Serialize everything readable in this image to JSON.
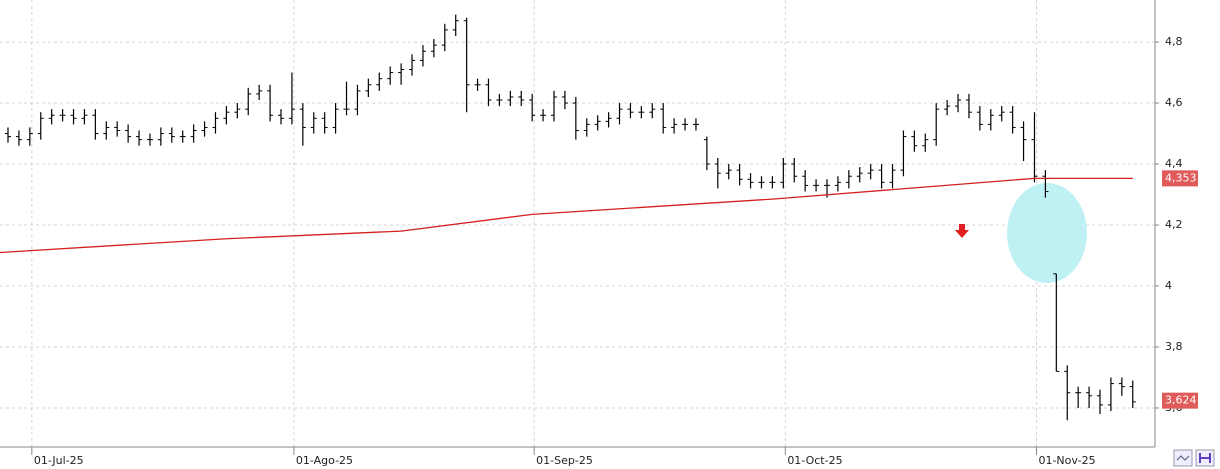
{
  "chart_data": {
    "type": "ohlc",
    "categories": [
      null,
      null,
      "01-Jul-25",
      null,
      null,
      null,
      null,
      null,
      null,
      null,
      null,
      null,
      null,
      null,
      null,
      null,
      null,
      null,
      null,
      null,
      null,
      null,
      null,
      null,
      null,
      null,
      "01-Ago-25",
      null,
      null,
      null,
      null,
      null,
      null,
      null,
      null,
      null,
      null,
      null,
      null,
      null,
      null,
      null,
      null,
      null,
      null,
      null,
      null,
      null,
      "01-Sep-25",
      null,
      null,
      null,
      null,
      null,
      null,
      null,
      null,
      null,
      null,
      null,
      null,
      null,
      null,
      null,
      null,
      null,
      null,
      null,
      null,
      null,
      null,
      "01-Oct-25",
      null,
      null,
      null,
      null,
      null,
      null,
      null,
      null,
      null,
      null,
      null,
      null,
      null,
      null,
      null,
      null,
      null,
      null,
      null,
      null,
      null,
      null,
      "01-Nov-25",
      null,
      null,
      null,
      null,
      null,
      null,
      null,
      null,
      null
    ],
    "open": [
      4.5,
      4.49,
      4.48,
      4.5,
      4.55,
      4.56,
      4.56,
      4.55,
      4.56,
      4.5,
      4.52,
      4.51,
      4.49,
      4.48,
      4.48,
      4.5,
      4.49,
      4.49,
      4.51,
      4.52,
      4.55,
      4.57,
      4.58,
      4.63,
      4.64,
      4.56,
      4.55,
      4.58,
      4.52,
      4.55,
      4.52,
      4.58,
      4.58,
      4.64,
      4.66,
      4.68,
      4.7,
      4.71,
      4.74,
      4.77,
      4.79,
      4.84,
      4.87,
      4.66,
      4.66,
      4.61,
      4.61,
      4.62,
      4.61,
      4.56,
      4.56,
      4.62,
      4.6,
      4.51,
      4.53,
      4.54,
      4.55,
      4.58,
      4.57,
      4.57,
      4.58,
      4.52,
      4.53,
      4.53,
      4.48,
      4.4,
      4.37,
      4.38,
      4.35,
      4.34,
      4.34,
      4.34,
      4.4,
      4.36,
      4.33,
      4.33,
      4.33,
      4.34,
      4.36,
      4.37,
      4.38,
      4.34,
      4.38,
      4.49,
      4.46,
      4.48,
      4.58,
      4.59,
      4.61,
      4.57,
      4.53,
      4.56,
      4.57,
      4.52,
      4.48,
      4.36,
      4.04,
      3.72,
      3.65,
      3.65,
      3.64,
      3.61,
      3.68,
      3.67
    ],
    "high": [
      4.52,
      4.51,
      4.52,
      4.57,
      4.58,
      4.58,
      4.58,
      4.58,
      4.58,
      4.54,
      4.54,
      4.53,
      4.51,
      4.5,
      4.52,
      4.52,
      4.51,
      4.53,
      4.54,
      4.57,
      4.59,
      4.6,
      4.65,
      4.66,
      4.66,
      4.58,
      4.7,
      4.6,
      4.57,
      4.57,
      4.6,
      4.67,
      4.66,
      4.68,
      4.7,
      4.72,
      4.73,
      4.76,
      4.79,
      4.81,
      4.86,
      4.89,
      4.88,
      4.68,
      4.68,
      4.63,
      4.64,
      4.64,
      4.63,
      4.58,
      4.64,
      4.64,
      4.62,
      4.55,
      4.56,
      4.57,
      4.6,
      4.6,
      4.59,
      4.6,
      4.6,
      4.55,
      4.55,
      4.55,
      4.49,
      4.42,
      4.4,
      4.4,
      4.37,
      4.36,
      4.36,
      4.42,
      4.42,
      4.38,
      4.35,
      4.35,
      4.36,
      4.38,
      4.39,
      4.4,
      4.4,
      4.4,
      4.51,
      4.51,
      4.5,
      4.6,
      4.61,
      4.63,
      4.63,
      4.59,
      4.58,
      4.59,
      4.59,
      4.54,
      4.57,
      4.38,
      4.04,
      3.74,
      3.67,
      3.67,
      3.66,
      3.7,
      3.7,
      3.69
    ],
    "low": [
      4.47,
      4.46,
      4.46,
      4.48,
      4.53,
      4.54,
      4.53,
      4.53,
      4.48,
      4.48,
      4.49,
      4.47,
      4.46,
      4.46,
      4.46,
      4.47,
      4.47,
      4.47,
      4.49,
      4.5,
      4.53,
      4.55,
      4.56,
      4.61,
      4.54,
      4.53,
      4.53,
      4.46,
      4.5,
      4.5,
      4.5,
      4.56,
      4.56,
      4.62,
      4.64,
      4.66,
      4.66,
      4.69,
      4.72,
      4.75,
      4.77,
      4.82,
      4.57,
      4.64,
      4.59,
      4.59,
      4.59,
      4.59,
      4.54,
      4.54,
      4.54,
      4.58,
      4.48,
      4.49,
      4.51,
      4.52,
      4.53,
      4.55,
      4.55,
      4.55,
      4.5,
      4.5,
      4.51,
      4.51,
      4.38,
      4.32,
      4.35,
      4.33,
      4.32,
      4.32,
      4.32,
      4.32,
      4.34,
      4.31,
      4.31,
      4.29,
      4.31,
      4.32,
      4.34,
      4.35,
      4.32,
      4.32,
      4.36,
      4.44,
      4.44,
      4.46,
      4.56,
      4.57,
      4.55,
      4.51,
      4.51,
      4.54,
      4.5,
      4.41,
      4.34,
      4.29,
      3.72,
      3.56,
      3.6,
      3.6,
      3.58,
      3.59,
      3.64,
      3.6
    ],
    "close": [
      4.49,
      4.48,
      4.5,
      4.55,
      4.56,
      4.56,
      4.55,
      4.56,
      4.5,
      4.52,
      4.51,
      4.49,
      4.48,
      4.48,
      4.5,
      4.49,
      4.49,
      4.51,
      4.52,
      4.55,
      4.57,
      4.58,
      4.63,
      4.64,
      4.56,
      4.55,
      4.58,
      4.52,
      4.55,
      4.52,
      4.58,
      4.58,
      4.64,
      4.66,
      4.68,
      4.7,
      4.71,
      4.74,
      4.77,
      4.79,
      4.84,
      4.87,
      4.66,
      4.66,
      4.61,
      4.61,
      4.62,
      4.61,
      4.56,
      4.56,
      4.62,
      4.6,
      4.51,
      4.53,
      4.54,
      4.55,
      4.58,
      4.57,
      4.57,
      4.58,
      4.52,
      4.53,
      4.53,
      4.53,
      4.4,
      4.37,
      4.38,
      4.35,
      4.34,
      4.34,
      4.34,
      4.4,
      4.36,
      4.33,
      4.33,
      4.33,
      4.34,
      4.36,
      4.37,
      4.38,
      4.34,
      4.38,
      4.49,
      4.46,
      4.48,
      4.58,
      4.59,
      4.61,
      4.57,
      4.53,
      4.56,
      4.57,
      4.52,
      4.48,
      4.36,
      4.31,
      3.72,
      3.65,
      3.65,
      3.64,
      3.61,
      3.68,
      3.67,
      3.62
    ],
    "bar_color": "#000000",
    "moving_average": {
      "color": "#d42020",
      "x": [
        0,
        20,
        36,
        48,
        70,
        94,
        103
      ],
      "values": [
        4.11,
        4.155,
        4.18,
        4.235,
        4.285,
        4.353,
        4.353
      ]
    },
    "ylim": [
      3.472,
      4.938
    ],
    "yticks": [
      {
        "value": 3.6,
        "label": "3,6"
      },
      {
        "value": 3.8,
        "label": "3,8"
      },
      {
        "value": 4,
        "label": "4"
      },
      {
        "value": 4.2,
        "label": "4,2"
      },
      {
        "value": 4.4,
        "label": "4,4"
      },
      {
        "value": 4.6,
        "label": "4,6"
      },
      {
        "value": 4.8,
        "label": "4,8"
      }
    ],
    "price_labels": [
      {
        "value": 4.353,
        "label": "4,353"
      },
      {
        "value": 3.624,
        "label": "3,624"
      }
    ],
    "price_label_color": "#e05a5a",
    "grid": true
  }
}
